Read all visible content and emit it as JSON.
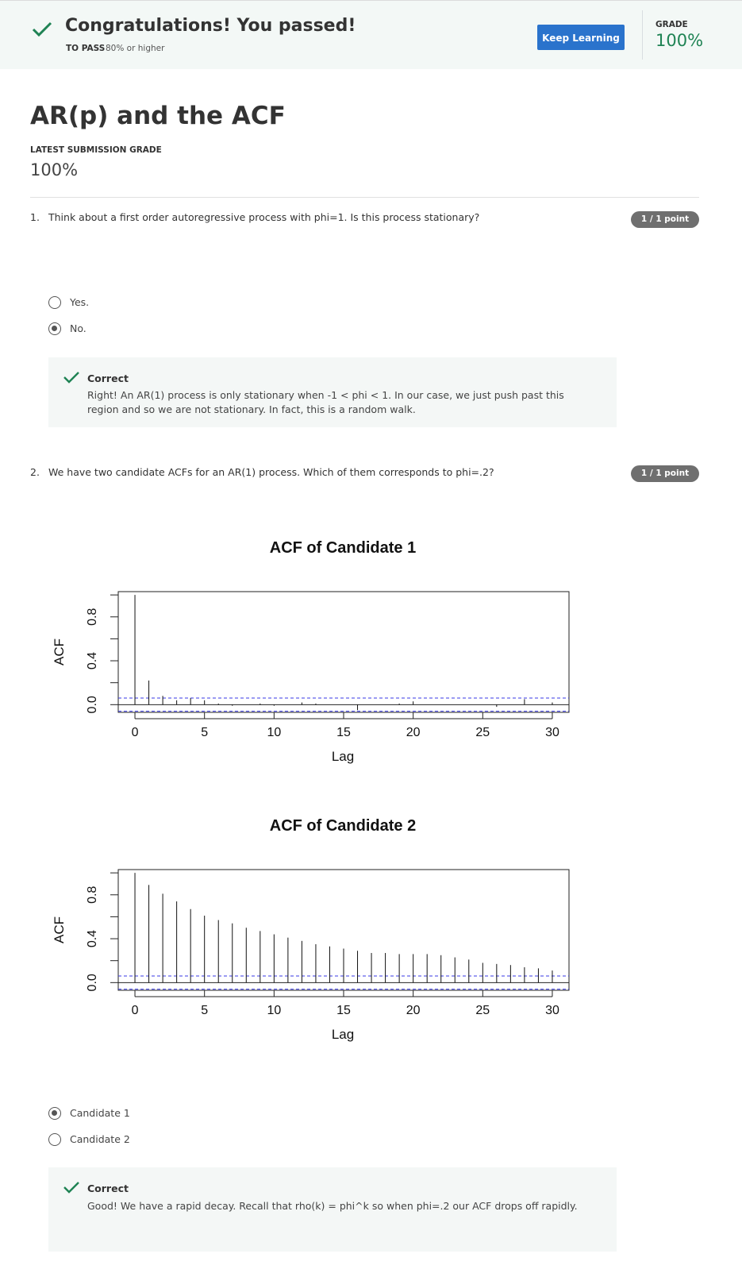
{
  "banner": {
    "title": "Congratulations! You passed!",
    "to_pass_label": "TO PASS",
    "to_pass_value": "80% or higher",
    "keep_learning_button": "Keep Learning",
    "grade_label": "GRADE",
    "grade_value": "100%",
    "accent_color": "#1f8354",
    "button_color": "#2a73cc"
  },
  "quiz": {
    "title": "AR(p) and the ACF",
    "latest_label": "LATEST SUBMISSION GRADE",
    "latest_value": "100%"
  },
  "questions": [
    {
      "number": "1.",
      "text": "Think about a first order autoregressive process with phi=1. Is this process stationary?",
      "points": "1 / 1 point",
      "options": [
        {
          "label": "Yes.",
          "selected": false
        },
        {
          "label": "No.",
          "selected": true
        }
      ],
      "feedback": {
        "title": "Correct",
        "text": " Right! An AR(1) process is only stationary when -1 < phi < 1. In our case, we just push past this region and so we are not stationary. In fact, this is a random walk."
      }
    },
    {
      "number": "2.",
      "text": "We have two candidate ACFs for an AR(1) process.  Which  of them corresponds to phi=.2?",
      "points": "1 / 1 point",
      "options": [
        {
          "label": "Candidate 1",
          "selected": true
        },
        {
          "label": "Candidate 2",
          "selected": false
        }
      ],
      "feedback": {
        "title": "Correct",
        "text": "Good! We have a rapid decay.  Recall that  rho(k) = phi^k so when phi=.2 our ACF drops off rapidly."
      }
    }
  ],
  "chart_data": [
    {
      "type": "bar",
      "title": "ACF of Candidate 1",
      "xlabel": "Lag",
      "ylabel": "ACF",
      "x": [
        0,
        1,
        2,
        3,
        4,
        5,
        6,
        7,
        8,
        9,
        10,
        11,
        12,
        13,
        14,
        15,
        16,
        17,
        18,
        19,
        20,
        21,
        22,
        23,
        24,
        25,
        26,
        27,
        28,
        29,
        30
      ],
      "values": [
        1.0,
        0.22,
        0.08,
        0.04,
        0.06,
        0.04,
        0.01,
        -0.01,
        0.0,
        0.01,
        -0.01,
        0.0,
        0.02,
        0.01,
        0.0,
        0.0,
        -0.05,
        0.0,
        0.0,
        0.01,
        0.03,
        0.0,
        0.0,
        0.0,
        0.0,
        0.0,
        -0.02,
        0.0,
        0.05,
        0.0,
        0.02
      ],
      "ci": 0.06,
      "xlim": [
        -1.2,
        31.2
      ],
      "ylim": [
        -0.07,
        1.03
      ],
      "xticks": [
        0,
        5,
        10,
        15,
        20,
        25,
        30
      ],
      "yticks": [
        0.0,
        0.4,
        0.8
      ],
      "yticks_minor": [
        0.0,
        0.2,
        0.4,
        0.6,
        0.8,
        1.0
      ],
      "ci_color": "#3a3ae6"
    },
    {
      "type": "bar",
      "title": "ACF of Candidate 2",
      "xlabel": "Lag",
      "ylabel": "ACF",
      "x": [
        0,
        1,
        2,
        3,
        4,
        5,
        6,
        7,
        8,
        9,
        10,
        11,
        12,
        13,
        14,
        15,
        16,
        17,
        18,
        19,
        20,
        21,
        22,
        23,
        24,
        25,
        26,
        27,
        28,
        29,
        30
      ],
      "values": [
        1.0,
        0.89,
        0.81,
        0.74,
        0.67,
        0.61,
        0.57,
        0.54,
        0.5,
        0.47,
        0.44,
        0.41,
        0.38,
        0.35,
        0.33,
        0.31,
        0.29,
        0.27,
        0.27,
        0.26,
        0.26,
        0.26,
        0.25,
        0.23,
        0.21,
        0.18,
        0.17,
        0.16,
        0.14,
        0.13,
        0.11
      ],
      "ci": 0.06,
      "xlim": [
        -1.2,
        31.2
      ],
      "ylim": [
        -0.07,
        1.03
      ],
      "xticks": [
        0,
        5,
        10,
        15,
        20,
        25,
        30
      ],
      "yticks": [
        0.0,
        0.4,
        0.8
      ],
      "yticks_minor": [
        0.0,
        0.2,
        0.4,
        0.6,
        0.8,
        1.0
      ],
      "ci_color": "#3a3ae6"
    }
  ]
}
